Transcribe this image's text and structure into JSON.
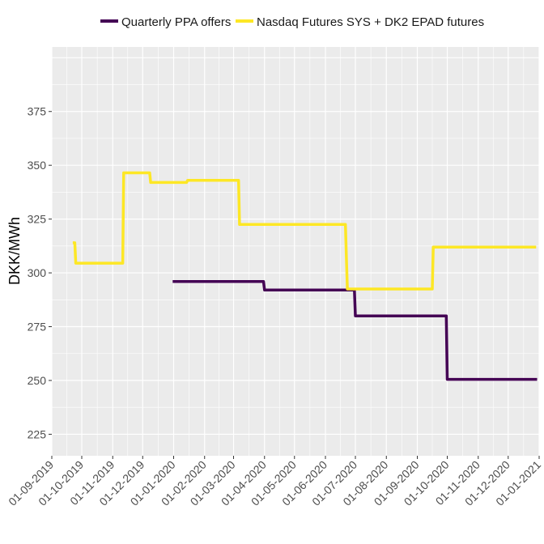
{
  "chart_data": {
    "type": "line",
    "line_shape": "step",
    "title": "",
    "xlabel": "",
    "ylabel": "DKK/MWh",
    "legend": "top",
    "grid": true,
    "xlim": [
      "2019-09-01",
      "2021-01-01"
    ],
    "ylim": [
      215,
      405
    ],
    "x_ticks": [
      "01-09-2019",
      "01-10-2019",
      "01-11-2019",
      "01-12-2019",
      "01-01-2020",
      "01-02-2020",
      "01-03-2020",
      "01-04-2020",
      "01-05-2020",
      "01-06-2020",
      "01-07-2020",
      "01-08-2020",
      "01-09-2020",
      "01-10-2020",
      "01-11-2020",
      "01-12-2020",
      "01-01-2021"
    ],
    "y_ticks": [
      225,
      250,
      275,
      300,
      325,
      350,
      375
    ],
    "series": [
      {
        "name": "Quarterly PPA offers",
        "color": "#440154",
        "points": [
          [
            "2019-12-31",
            296
          ],
          [
            "2020-03-31",
            296
          ],
          [
            "2020-04-01",
            292
          ],
          [
            "2020-06-30",
            292
          ],
          [
            "2020-07-01",
            280
          ],
          [
            "2020-09-30",
            280
          ],
          [
            "2020-10-01",
            250.5
          ],
          [
            "2020-12-30",
            250.5
          ]
        ]
      },
      {
        "name": "Nasdaq Futures SYS + DK2 EPAD futures",
        "color": "#FDE725",
        "points": [
          [
            "2019-09-22",
            314
          ],
          [
            "2019-09-24",
            314
          ],
          [
            "2019-09-25",
            304.5
          ],
          [
            "2019-11-11",
            304.5
          ],
          [
            "2019-11-12",
            346.5
          ],
          [
            "2019-12-08",
            346.5
          ],
          [
            "2019-12-09",
            342
          ],
          [
            "2020-01-14",
            342
          ],
          [
            "2020-01-15",
            343
          ],
          [
            "2020-03-06",
            343
          ],
          [
            "2020-03-07",
            322.5
          ],
          [
            "2020-06-21",
            322.5
          ],
          [
            "2020-06-22",
            307
          ],
          [
            "2020-06-23",
            292.5
          ],
          [
            "2020-09-16",
            292.5
          ],
          [
            "2020-09-17",
            312
          ],
          [
            "2020-12-29",
            312
          ]
        ]
      }
    ]
  }
}
